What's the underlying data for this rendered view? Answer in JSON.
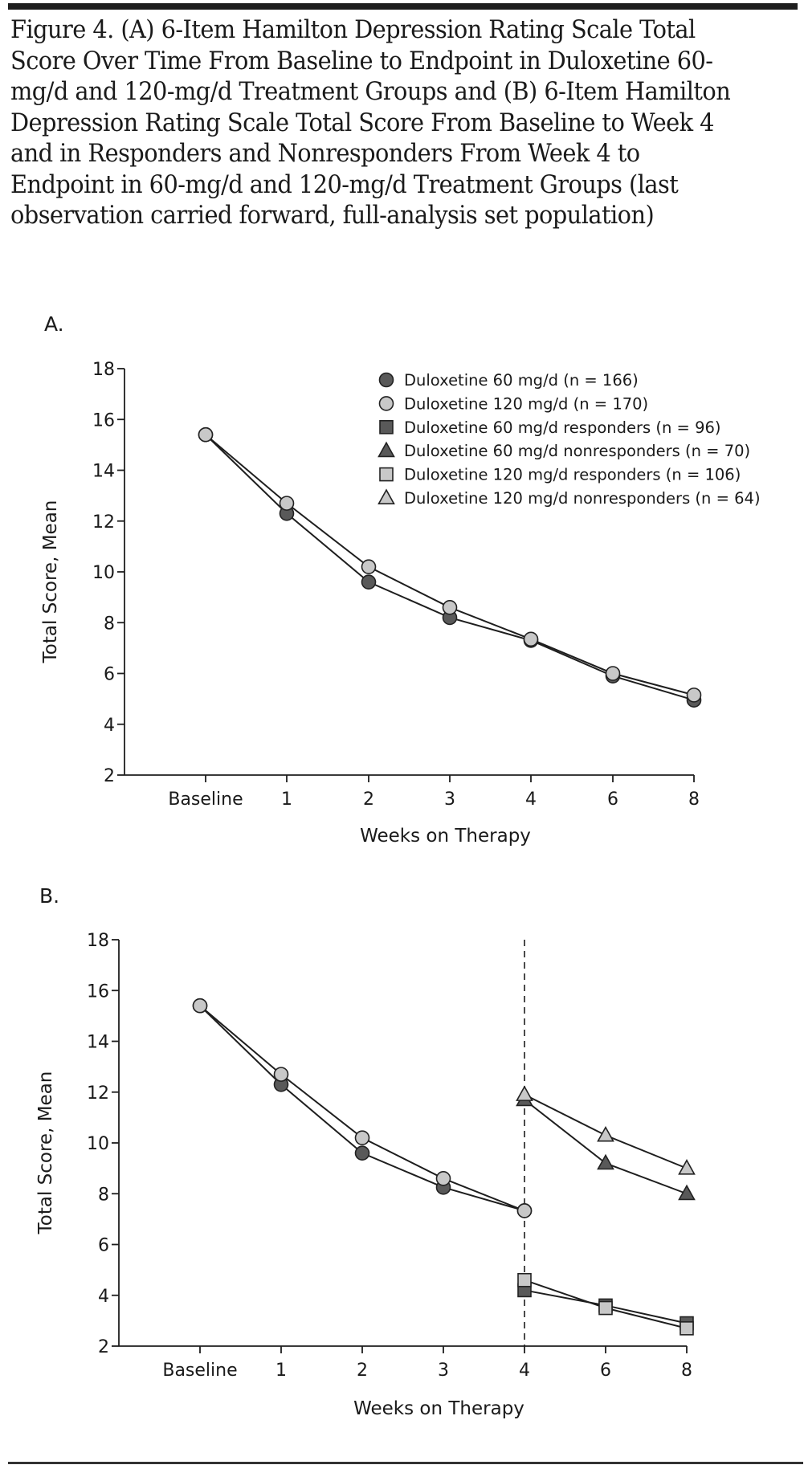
{
  "figure": {
    "title": "Figure 4. (A) 6-Item Hamilton Depression Rating Scale Total Score Over Time From Baseline to Endpoint in Duloxetine 60-mg/d and 120-mg/d Treatment Groups and (B) 6-Item Hamilton Depression Rating Scale Total Score From Baseline to Week 4 and in Responders and Nonresponders From Week 4 to Endpoint in 60-mg/d and 120-mg/d Treatment Groups (last observation carried forward, full-analysis set population)"
  },
  "colors": {
    "dark": "#595959",
    "light": "#c8c8c8",
    "stroke": "#222222",
    "line": "#1e1e1e"
  },
  "legend": [
    {
      "label": "Duloxetine 60 mg/d (n = 166)",
      "marker": "circle",
      "fill": "dark"
    },
    {
      "label": "Duloxetine 120 mg/d (n = 170)",
      "marker": "circle",
      "fill": "light"
    },
    {
      "label": "Duloxetine 60 mg/d responders (n = 96)",
      "marker": "square",
      "fill": "dark"
    },
    {
      "label": "Duloxetine 60 mg/d nonresponders (n = 70)",
      "marker": "triangle",
      "fill": "dark"
    },
    {
      "label": "Duloxetine 120 mg/d responders (n = 106)",
      "marker": "square",
      "fill": "light"
    },
    {
      "label": "Duloxetine 120 mg/d nonresponders (n = 64)",
      "marker": "triangle",
      "fill": "light"
    }
  ],
  "chart_data": [
    {
      "panel_label": "A.",
      "type": "line",
      "categories": [
        "Baseline",
        "1",
        "2",
        "3",
        "4",
        "6",
        "8"
      ],
      "xlabel": "Weeks on Therapy",
      "ylabel": "Total Score, Mean",
      "ylim": [
        2,
        18
      ],
      "yticks": [
        2,
        4,
        6,
        8,
        10,
        12,
        14,
        16,
        18
      ],
      "grid": false,
      "legend_position": "top-right",
      "series": [
        {
          "name": "Duloxetine 60 mg/d (n = 166)",
          "marker": "circle",
          "fill": "dark",
          "x": [
            "Baseline",
            "1",
            "2",
            "3",
            "4",
            "6",
            "8"
          ],
          "values": [
            15.4,
            12.3,
            9.6,
            8.2,
            7.3,
            5.9,
            4.95
          ]
        },
        {
          "name": "Duloxetine 120 mg/d (n = 170)",
          "marker": "circle",
          "fill": "light",
          "x": [
            "Baseline",
            "1",
            "2",
            "3",
            "4",
            "6",
            "8"
          ],
          "values": [
            15.4,
            12.7,
            10.2,
            8.6,
            7.35,
            6.0,
            5.15
          ]
        }
      ]
    },
    {
      "panel_label": "B.",
      "type": "line",
      "categories": [
        "Baseline",
        "1",
        "2",
        "3",
        "4",
        "6",
        "8"
      ],
      "xlabel": "Weeks on Therapy",
      "ylabel": "Total Score, Mean",
      "ylim": [
        2,
        18
      ],
      "yticks": [
        2,
        4,
        6,
        8,
        10,
        12,
        14,
        16,
        18
      ],
      "grid": false,
      "reference_line": {
        "x": "4",
        "style": "dashed"
      },
      "series": [
        {
          "name": "Duloxetine 60 mg/d (n = 166)",
          "marker": "circle",
          "fill": "dark",
          "x": [
            "Baseline",
            "1",
            "2",
            "3",
            "4"
          ],
          "values": [
            15.4,
            12.3,
            9.6,
            8.25,
            7.33
          ]
        },
        {
          "name": "Duloxetine 120 mg/d (n = 170)",
          "marker": "circle",
          "fill": "light",
          "x": [
            "Baseline",
            "1",
            "2",
            "3",
            "4"
          ],
          "values": [
            15.4,
            12.7,
            10.2,
            8.6,
            7.33
          ]
        },
        {
          "name": "Duloxetine 60 mg/d responders (n = 96)",
          "marker": "square",
          "fill": "dark",
          "x": [
            "4",
            "6",
            "8"
          ],
          "values": [
            4.2,
            3.6,
            2.9
          ]
        },
        {
          "name": "Duloxetine 60 mg/d nonresponders (n = 70)",
          "marker": "triangle",
          "fill": "dark",
          "x": [
            "4",
            "6",
            "8"
          ],
          "values": [
            11.7,
            9.2,
            8.0
          ]
        },
        {
          "name": "Duloxetine 120 mg/d responders (n = 106)",
          "marker": "square",
          "fill": "light",
          "x": [
            "4",
            "6",
            "8"
          ],
          "values": [
            4.6,
            3.5,
            2.7
          ]
        },
        {
          "name": "Duloxetine 120 mg/d nonresponders (n = 64)",
          "marker": "triangle",
          "fill": "light",
          "x": [
            "4",
            "6",
            "8"
          ],
          "values": [
            11.9,
            10.3,
            9.0
          ]
        }
      ]
    }
  ]
}
